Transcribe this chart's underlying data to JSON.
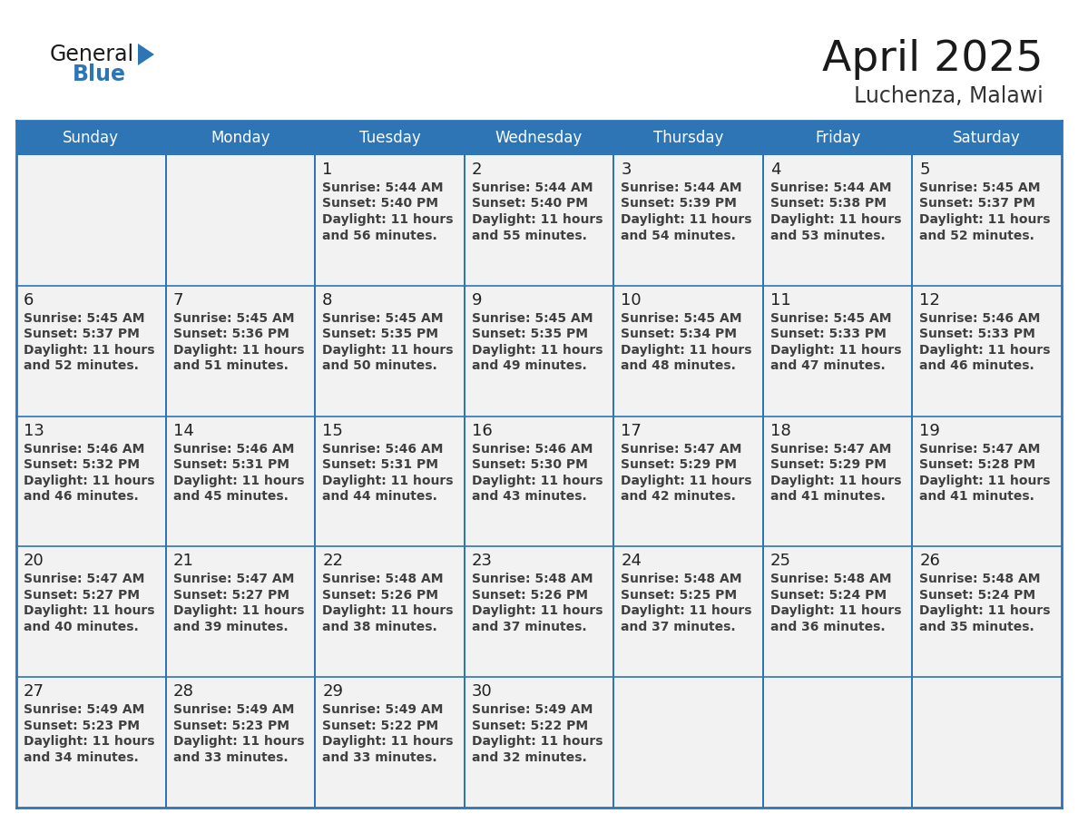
{
  "title": "April 2025",
  "subtitle": "Luchenza, Malawi",
  "header_bg": "#2E75B6",
  "header_text_color": "#FFFFFF",
  "cell_bg": "#F2F2F2",
  "grid_line_color": "#2E75B6",
  "text_color": "#404040",
  "day_num_color": "#222222",
  "logo_general_color": "#1a1a1a",
  "logo_blue_color": "#2E75B6",
  "day_names": [
    "Sunday",
    "Monday",
    "Tuesday",
    "Wednesday",
    "Thursday",
    "Friday",
    "Saturday"
  ],
  "weeks": [
    [
      {
        "date": "",
        "sunrise": "",
        "sunset": "",
        "daylight_h": "",
        "daylight_m": ""
      },
      {
        "date": "",
        "sunrise": "",
        "sunset": "",
        "daylight_h": "",
        "daylight_m": ""
      },
      {
        "date": "1",
        "sunrise": "5:44 AM",
        "sunset": "5:40 PM",
        "daylight_h": "11 hours",
        "daylight_m": "and 56 minutes."
      },
      {
        "date": "2",
        "sunrise": "5:44 AM",
        "sunset": "5:40 PM",
        "daylight_h": "11 hours",
        "daylight_m": "and 55 minutes."
      },
      {
        "date": "3",
        "sunrise": "5:44 AM",
        "sunset": "5:39 PM",
        "daylight_h": "11 hours",
        "daylight_m": "and 54 minutes."
      },
      {
        "date": "4",
        "sunrise": "5:44 AM",
        "sunset": "5:38 PM",
        "daylight_h": "11 hours",
        "daylight_m": "and 53 minutes."
      },
      {
        "date": "5",
        "sunrise": "5:45 AM",
        "sunset": "5:37 PM",
        "daylight_h": "11 hours",
        "daylight_m": "and 52 minutes."
      }
    ],
    [
      {
        "date": "6",
        "sunrise": "5:45 AM",
        "sunset": "5:37 PM",
        "daylight_h": "11 hours",
        "daylight_m": "and 52 minutes."
      },
      {
        "date": "7",
        "sunrise": "5:45 AM",
        "sunset": "5:36 PM",
        "daylight_h": "11 hours",
        "daylight_m": "and 51 minutes."
      },
      {
        "date": "8",
        "sunrise": "5:45 AM",
        "sunset": "5:35 PM",
        "daylight_h": "11 hours",
        "daylight_m": "and 50 minutes."
      },
      {
        "date": "9",
        "sunrise": "5:45 AM",
        "sunset": "5:35 PM",
        "daylight_h": "11 hours",
        "daylight_m": "and 49 minutes."
      },
      {
        "date": "10",
        "sunrise": "5:45 AM",
        "sunset": "5:34 PM",
        "daylight_h": "11 hours",
        "daylight_m": "and 48 minutes."
      },
      {
        "date": "11",
        "sunrise": "5:45 AM",
        "sunset": "5:33 PM",
        "daylight_h": "11 hours",
        "daylight_m": "and 47 minutes."
      },
      {
        "date": "12",
        "sunrise": "5:46 AM",
        "sunset": "5:33 PM",
        "daylight_h": "11 hours",
        "daylight_m": "and 46 minutes."
      }
    ],
    [
      {
        "date": "13",
        "sunrise": "5:46 AM",
        "sunset": "5:32 PM",
        "daylight_h": "11 hours",
        "daylight_m": "and 46 minutes."
      },
      {
        "date": "14",
        "sunrise": "5:46 AM",
        "sunset": "5:31 PM",
        "daylight_h": "11 hours",
        "daylight_m": "and 45 minutes."
      },
      {
        "date": "15",
        "sunrise": "5:46 AM",
        "sunset": "5:31 PM",
        "daylight_h": "11 hours",
        "daylight_m": "and 44 minutes."
      },
      {
        "date": "16",
        "sunrise": "5:46 AM",
        "sunset": "5:30 PM",
        "daylight_h": "11 hours",
        "daylight_m": "and 43 minutes."
      },
      {
        "date": "17",
        "sunrise": "5:47 AM",
        "sunset": "5:29 PM",
        "daylight_h": "11 hours",
        "daylight_m": "and 42 minutes."
      },
      {
        "date": "18",
        "sunrise": "5:47 AM",
        "sunset": "5:29 PM",
        "daylight_h": "11 hours",
        "daylight_m": "and 41 minutes."
      },
      {
        "date": "19",
        "sunrise": "5:47 AM",
        "sunset": "5:28 PM",
        "daylight_h": "11 hours",
        "daylight_m": "and 41 minutes."
      }
    ],
    [
      {
        "date": "20",
        "sunrise": "5:47 AM",
        "sunset": "5:27 PM",
        "daylight_h": "11 hours",
        "daylight_m": "and 40 minutes."
      },
      {
        "date": "21",
        "sunrise": "5:47 AM",
        "sunset": "5:27 PM",
        "daylight_h": "11 hours",
        "daylight_m": "and 39 minutes."
      },
      {
        "date": "22",
        "sunrise": "5:48 AM",
        "sunset": "5:26 PM",
        "daylight_h": "11 hours",
        "daylight_m": "and 38 minutes."
      },
      {
        "date": "23",
        "sunrise": "5:48 AM",
        "sunset": "5:26 PM",
        "daylight_h": "11 hours",
        "daylight_m": "and 37 minutes."
      },
      {
        "date": "24",
        "sunrise": "5:48 AM",
        "sunset": "5:25 PM",
        "daylight_h": "11 hours",
        "daylight_m": "and 37 minutes."
      },
      {
        "date": "25",
        "sunrise": "5:48 AM",
        "sunset": "5:24 PM",
        "daylight_h": "11 hours",
        "daylight_m": "and 36 minutes."
      },
      {
        "date": "26",
        "sunrise": "5:48 AM",
        "sunset": "5:24 PM",
        "daylight_h": "11 hours",
        "daylight_m": "and 35 minutes."
      }
    ],
    [
      {
        "date": "27",
        "sunrise": "5:49 AM",
        "sunset": "5:23 PM",
        "daylight_h": "11 hours",
        "daylight_m": "and 34 minutes."
      },
      {
        "date": "28",
        "sunrise": "5:49 AM",
        "sunset": "5:23 PM",
        "daylight_h": "11 hours",
        "daylight_m": "and 33 minutes."
      },
      {
        "date": "29",
        "sunrise": "5:49 AM",
        "sunset": "5:22 PM",
        "daylight_h": "11 hours",
        "daylight_m": "and 33 minutes."
      },
      {
        "date": "30",
        "sunrise": "5:49 AM",
        "sunset": "5:22 PM",
        "daylight_h": "11 hours",
        "daylight_m": "and 32 minutes."
      },
      {
        "date": "",
        "sunrise": "",
        "sunset": "",
        "daylight_h": "",
        "daylight_m": ""
      },
      {
        "date": "",
        "sunrise": "",
        "sunset": "",
        "daylight_h": "",
        "daylight_m": ""
      },
      {
        "date": "",
        "sunrise": "",
        "sunset": "",
        "daylight_h": "",
        "daylight_m": ""
      }
    ]
  ]
}
